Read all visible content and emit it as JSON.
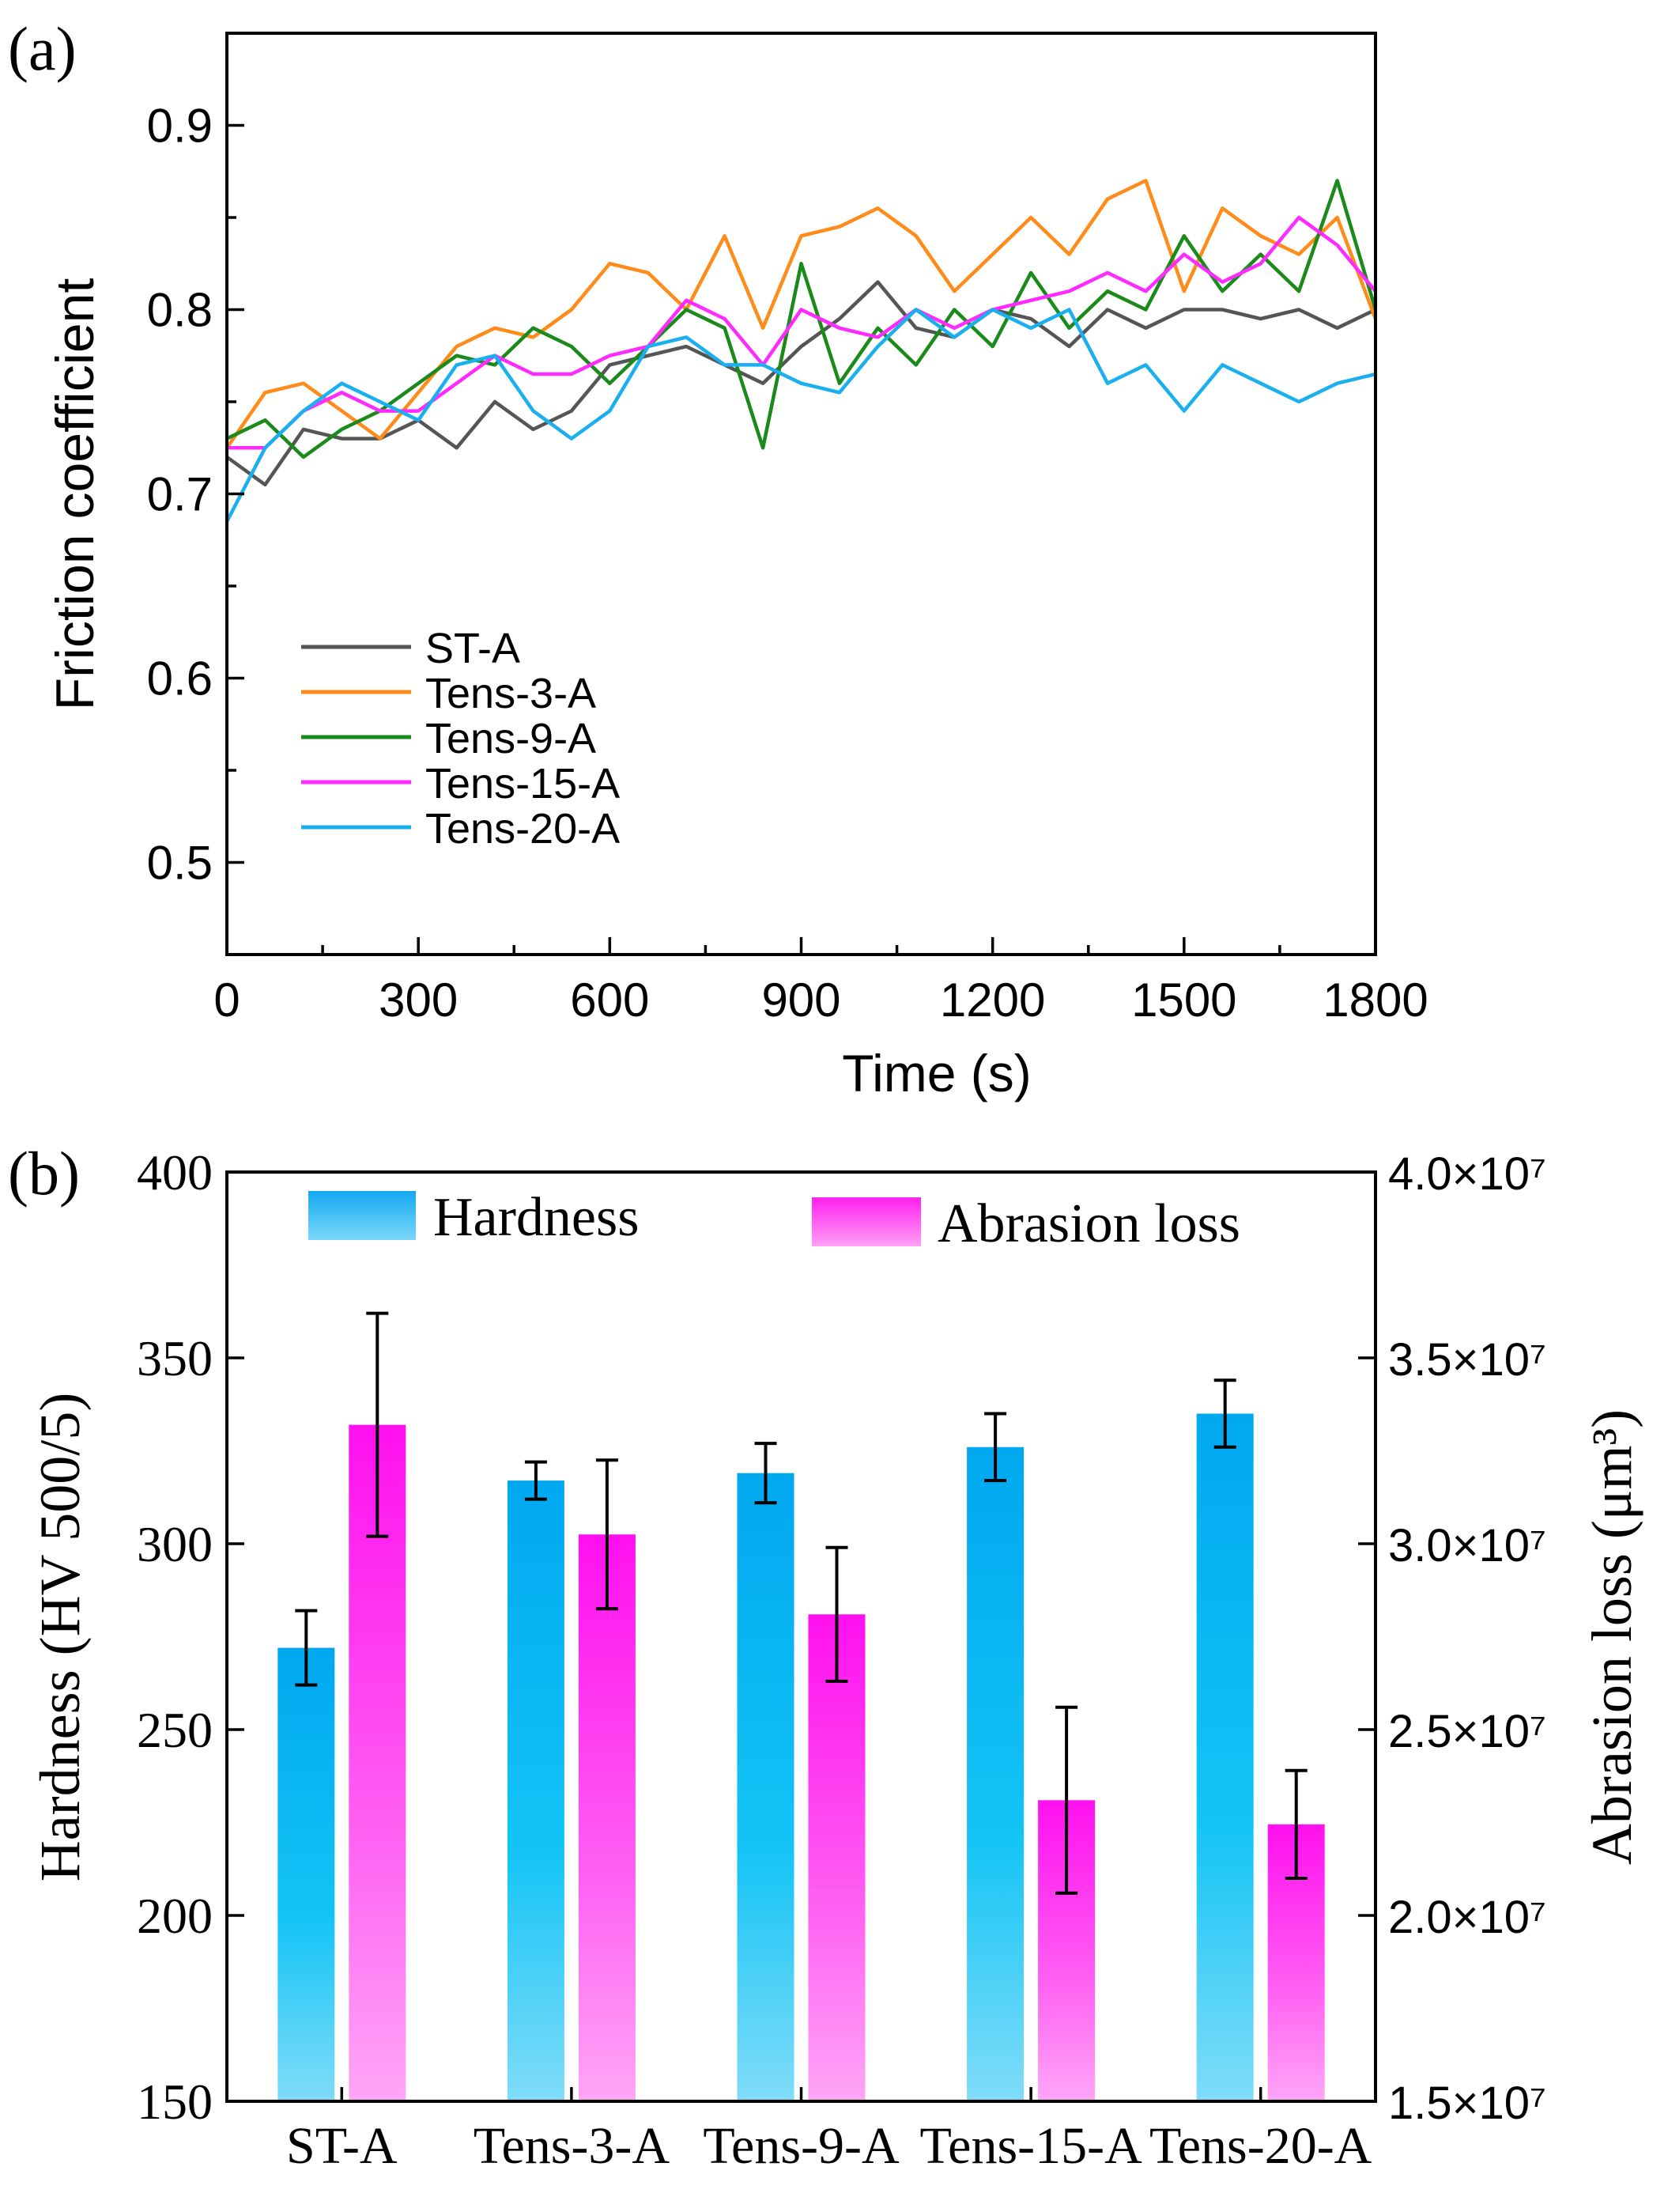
{
  "chart_data": [
    {
      "type": "line",
      "panel_label": "(a)",
      "xlabel": "Time (s)",
      "ylabel": "Friction coefficient",
      "xlim": [
        0,
        1800
      ],
      "ylim": [
        0.45,
        0.95
      ],
      "xticks": [
        "0",
        "300",
        "600",
        "900",
        "1200",
        "1500",
        "1800"
      ],
      "yticks": [
        "0.5",
        "0.6",
        "0.7",
        "0.8",
        "0.9"
      ],
      "legend_position": "lower-left",
      "x": [
        0,
        60,
        120,
        180,
        240,
        300,
        360,
        420,
        480,
        540,
        600,
        660,
        720,
        780,
        840,
        900,
        960,
        1020,
        1080,
        1140,
        1200,
        1260,
        1320,
        1380,
        1440,
        1500,
        1560,
        1620,
        1680,
        1740,
        1800
      ],
      "series": [
        {
          "name": "ST-A",
          "color": "#555555",
          "values": [
            0.72,
            0.705,
            0.735,
            0.73,
            0.73,
            0.74,
            0.725,
            0.75,
            0.735,
            0.745,
            0.77,
            0.775,
            0.78,
            0.77,
            0.76,
            0.78,
            0.795,
            0.815,
            0.79,
            0.785,
            0.8,
            0.795,
            0.78,
            0.8,
            0.79,
            0.8,
            0.8,
            0.795,
            0.8,
            0.79,
            0.8
          ]
        },
        {
          "name": "Tens-3-A",
          "color": "#ff8c1a",
          "values": [
            0.725,
            0.755,
            0.76,
            0.745,
            0.73,
            0.755,
            0.78,
            0.79,
            0.785,
            0.8,
            0.825,
            0.82,
            0.8,
            0.84,
            0.79,
            0.84,
            0.845,
            0.855,
            0.84,
            0.81,
            0.83,
            0.85,
            0.83,
            0.86,
            0.87,
            0.81,
            0.855,
            0.84,
            0.83,
            0.85,
            0.795
          ]
        },
        {
          "name": "Tens-9-A",
          "color": "#1a8a1a",
          "values": [
            0.73,
            0.74,
            0.72,
            0.735,
            0.745,
            0.76,
            0.775,
            0.77,
            0.79,
            0.78,
            0.76,
            0.78,
            0.8,
            0.79,
            0.725,
            0.825,
            0.76,
            0.79,
            0.77,
            0.8,
            0.78,
            0.82,
            0.79,
            0.81,
            0.8,
            0.84,
            0.81,
            0.83,
            0.81,
            0.87,
            0.8
          ]
        },
        {
          "name": "Tens-15-A",
          "color": "#ff2aff",
          "values": [
            0.725,
            0.725,
            0.745,
            0.755,
            0.745,
            0.745,
            0.76,
            0.775,
            0.765,
            0.765,
            0.775,
            0.78,
            0.805,
            0.795,
            0.77,
            0.8,
            0.79,
            0.785,
            0.8,
            0.79,
            0.8,
            0.805,
            0.81,
            0.82,
            0.81,
            0.83,
            0.815,
            0.825,
            0.85,
            0.835,
            0.81
          ]
        },
        {
          "name": "Tens-20-A",
          "color": "#1ab0f0",
          "values": [
            0.685,
            0.725,
            0.745,
            0.76,
            0.75,
            0.74,
            0.77,
            0.775,
            0.745,
            0.73,
            0.745,
            0.78,
            0.785,
            0.77,
            0.77,
            0.76,
            0.755,
            0.78,
            0.8,
            0.785,
            0.8,
            0.79,
            0.8,
            0.76,
            0.77,
            0.745,
            0.77,
            0.76,
            0.75,
            0.76,
            0.765
          ]
        }
      ]
    },
    {
      "type": "bar",
      "panel_label": "(b)",
      "categories": [
        "ST-A",
        "Tens-3-A",
        "Tens-9-A",
        "Tens-15-A",
        "Tens-20-A"
      ],
      "ylabel": "Hardness (HV 500/5)",
      "ylabel_right": "Abrasion loss (μm³)",
      "ylim": [
        150,
        400
      ],
      "ylim_right": [
        15000000,
        40000000
      ],
      "yticks": [
        "150",
        "200",
        "250",
        "300",
        "350",
        "400"
      ],
      "yticks_right": [
        "1.5×10⁷",
        "2.0×10⁷",
        "2.5×10⁷",
        "3.0×10⁷",
        "3.5×10⁷",
        "4.0×10⁷"
      ],
      "legend_position": "top",
      "series": [
        {
          "name": "Hardness",
          "axis": "left",
          "color_top": "#00a8f0",
          "color_bottom": "#7ad8f8",
          "values": [
            272,
            317,
            319,
            326,
            335
          ],
          "errors": [
            10,
            5,
            8,
            9,
            9
          ]
        },
        {
          "name": "Abrasion loss",
          "axis": "right",
          "color_top": "#ff10ef",
          "color_bottom": "#ff9ef6",
          "values": [
            33200000,
            30250000,
            28100000,
            23100000,
            22450000
          ],
          "errors": [
            3000000,
            2000000,
            1800000,
            2500000,
            1450000
          ]
        }
      ]
    }
  ]
}
